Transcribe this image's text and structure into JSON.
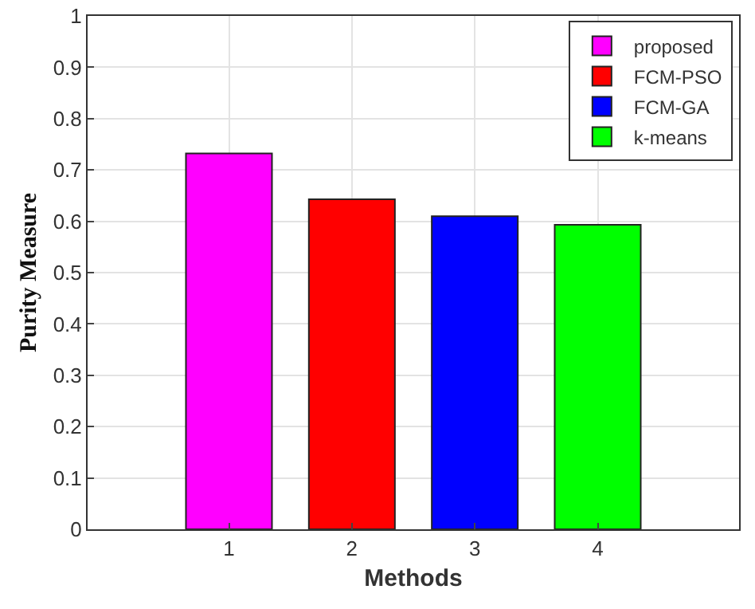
{
  "chart_data": {
    "type": "bar",
    "xlabel": "Methods",
    "ylabel": "Purity Measure",
    "series": [
      {
        "name": "proposed",
        "color": "#ff00ff",
        "x": [
          1
        ],
        "values": [
          0.732
        ]
      },
      {
        "name": "FCM-PSO",
        "color": "#ff0000",
        "x": [
          2
        ],
        "values": [
          0.643
        ]
      },
      {
        "name": "FCM-GA",
        "color": "#0000ff",
        "x": [
          3
        ],
        "values": [
          0.61
        ]
      },
      {
        "name": "k-means",
        "color": "#00ff00",
        "x": [
          4
        ],
        "values": [
          0.593
        ]
      }
    ],
    "xlim": [
      -0.15,
      5.15
    ],
    "xticks": [
      1,
      2,
      3,
      4
    ],
    "ylim": [
      0,
      1
    ],
    "yticks": [
      0,
      0.1,
      0.2,
      0.3,
      0.4,
      0.5,
      0.6,
      0.7,
      0.8,
      0.9,
      1
    ],
    "grid": true,
    "legend": "top right"
  }
}
